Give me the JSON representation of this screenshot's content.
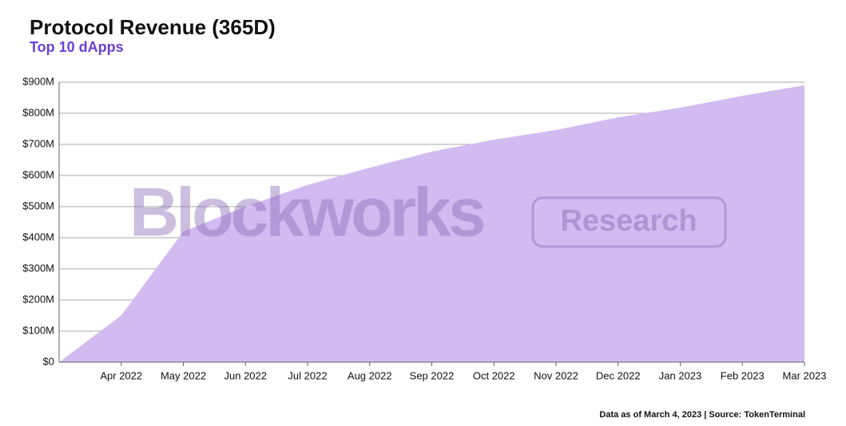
{
  "chart_data": {
    "type": "area",
    "title": "Protocol Revenue (365D)",
    "subtitle": "Top 10 dApps",
    "watermark": [
      "Blockworks",
      "Research"
    ],
    "footnote": "Data as of March 4, 2023 | Source: TokenTerminal",
    "x": [
      "2022-03",
      "2022-04",
      "2022-05",
      "2022-06",
      "2022-07",
      "2022-08",
      "2022-09",
      "2022-10",
      "2022-11",
      "2022-12",
      "2023-01",
      "2023-02",
      "2023-03"
    ],
    "values": [
      0,
      150,
      420,
      500,
      570,
      625,
      677,
      715,
      746,
      787,
      818,
      856,
      890
    ],
    "color": "#d1bbf0",
    "xlim": [
      "2022-03",
      "2023-03"
    ],
    "xticks": [
      {
        "value": "2022-04",
        "label": "Apr 2022"
      },
      {
        "value": "2022-05",
        "label": "May 2022"
      },
      {
        "value": "2022-06",
        "label": "Jun 2022"
      },
      {
        "value": "2022-07",
        "label": "Jul 2022"
      },
      {
        "value": "2022-08",
        "label": "Aug 2022"
      },
      {
        "value": "2022-09",
        "label": "Sep 2022"
      },
      {
        "value": "2022-10",
        "label": "Oct 2022"
      },
      {
        "value": "2022-11",
        "label": "Nov 2022"
      },
      {
        "value": "2022-12",
        "label": "Dec 2022"
      },
      {
        "value": "2023-01",
        "label": "Jan 2023"
      },
      {
        "value": "2023-02",
        "label": "Feb 2023"
      },
      {
        "value": "2023-03",
        "label": "Mar 2023"
      }
    ],
    "ylim": [
      0,
      900
    ],
    "yticks": [
      {
        "value": 0,
        "label": "$0"
      },
      {
        "value": 100,
        "label": "$100M"
      },
      {
        "value": 200,
        "label": "$200M"
      },
      {
        "value": 300,
        "label": "$300M"
      },
      {
        "value": 400,
        "label": "$400M"
      },
      {
        "value": 500,
        "label": "$500M"
      },
      {
        "value": 600,
        "label": "$600M"
      },
      {
        "value": 700,
        "label": "$700M"
      },
      {
        "value": 800,
        "label": "$800M"
      },
      {
        "value": 900,
        "label": "$900M"
      }
    ],
    "grid": true
  }
}
